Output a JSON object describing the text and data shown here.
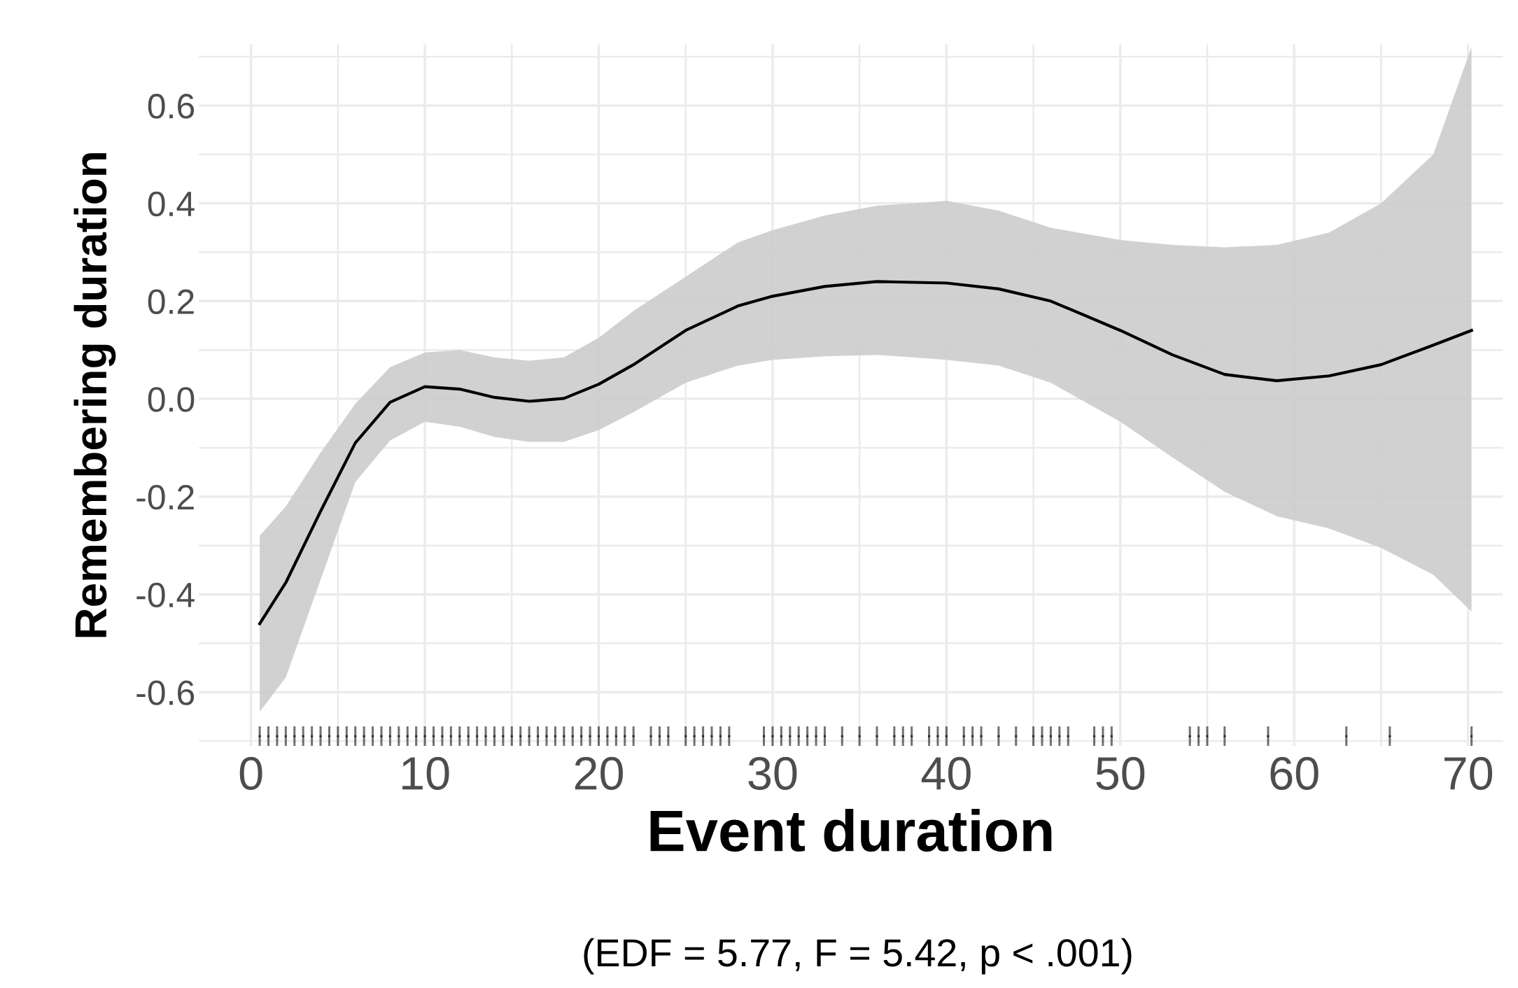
{
  "chart_data": {
    "type": "line",
    "xlabel": "Event duration",
    "ylabel": "Remembering duration",
    "annotations": [
      "(EDF = 5.77, F = 5.42, p < .001)"
    ],
    "xlim": [
      -3,
      72
    ],
    "ylim": [
      -0.71,
      0.725
    ],
    "xticks": [
      0,
      10,
      20,
      30,
      40,
      50,
      60,
      70
    ],
    "yticks": [
      {
        "value": -0.6,
        "label": "-0.6"
      },
      {
        "value": -0.4,
        "label": "-0.4"
      },
      {
        "value": -0.2,
        "label": "-0.2"
      },
      {
        "value": 0,
        "label": "0.0"
      },
      {
        "value": 0.2,
        "label": "0.2"
      },
      {
        "value": 0.4,
        "label": "0.4"
      },
      {
        "value": 0.6,
        "label": "0.6"
      }
    ],
    "grid": true,
    "legend": false,
    "series": [
      {
        "color": "#000000",
        "x": [
          0.5,
          2,
          4,
          6,
          8,
          10,
          12,
          14,
          16,
          18,
          20,
          22,
          25,
          28,
          30,
          33,
          36,
          40,
          43,
          46,
          50,
          53,
          56,
          59,
          62,
          65,
          68,
          70.2
        ],
        "values": [
          -0.46,
          -0.376,
          -0.23,
          -0.09,
          -0.007,
          0.025,
          0.02,
          0.003,
          -0.005,
          0.001,
          0.03,
          0.07,
          0.14,
          0.19,
          0.21,
          0.23,
          0.24,
          0.237,
          0.225,
          0.2,
          0.14,
          0.09,
          0.05,
          0.037,
          0.047,
          0.07,
          0.11,
          0.14
        ],
        "lower": [
          -0.64,
          -0.57,
          -0.37,
          -0.17,
          -0.085,
          -0.047,
          -0.057,
          -0.078,
          -0.088,
          -0.088,
          -0.064,
          -0.027,
          0.033,
          0.068,
          0.08,
          0.087,
          0.09,
          0.08,
          0.068,
          0.033,
          -0.047,
          -0.12,
          -0.19,
          -0.24,
          -0.265,
          -0.305,
          -0.36,
          -0.435
        ],
        "upper": [
          -0.28,
          -0.22,
          -0.11,
          -0.01,
          0.065,
          0.095,
          0.1,
          0.085,
          0.078,
          0.085,
          0.125,
          0.18,
          0.25,
          0.32,
          0.345,
          0.375,
          0.395,
          0.405,
          0.385,
          0.35,
          0.325,
          0.315,
          0.31,
          0.315,
          0.34,
          0.4,
          0.5,
          0.72
        ]
      },
      {
        "type": "scatter",
        "color": "#000000",
        "marker": "circle",
        "errors": [
          0.02,
          0.02,
          0.02,
          0.02,
          0.02,
          0.02,
          0.02,
          0.02,
          0.02,
          0.02,
          0.02,
          0.02,
          0.02,
          0.02,
          0.02,
          0.02,
          0.02,
          0.02,
          0.02,
          0.02,
          0.02,
          0.02,
          0.02,
          0.02,
          0.02,
          0.02,
          0.02,
          0.02,
          0.02,
          0.02,
          0.02,
          0.02,
          0.02,
          0.02,
          0.02,
          0.02,
          0.02,
          0.02,
          0.02,
          0.02,
          0.02,
          0.02,
          0.02,
          0.02,
          0.02,
          0.02,
          0.02,
          0.02,
          0.02,
          0.02,
          0.02,
          0.02,
          0.02,
          0.02,
          0.02,
          0.02,
          0.02,
          0.02,
          0.02,
          0.02,
          0.02,
          0.02,
          0.02,
          0.02,
          0.02,
          0.02,
          0.02,
          0.02,
          0.02,
          0.02,
          0.02,
          0.02,
          0.02,
          0.02,
          0.02,
          0.02,
          0.02,
          0.02,
          0.02,
          0.02,
          0.02,
          0.02,
          0.02,
          0.02,
          0.02,
          0.02,
          0.02,
          0.02,
          0.02,
          0.02,
          0.02
        ],
        "x": [
          0.5,
          1,
          1.5,
          2,
          2.5,
          3,
          3.5,
          4,
          4.5,
          5,
          5.5,
          6,
          6.5,
          7,
          7.5,
          8,
          8.5,
          9,
          9.5,
          10,
          10.5,
          11,
          11.5,
          12,
          12.5,
          13,
          13.5,
          14,
          14.5,
          15,
          15.5,
          16,
          16.5,
          17,
          17.5,
          18,
          18.5,
          19,
          19.5,
          20,
          20.5,
          21,
          21.5,
          22,
          23,
          23.5,
          24,
          25,
          25.5,
          26,
          26.5,
          27,
          27.5,
          29.5,
          30,
          30.5,
          31,
          31.5,
          32,
          32.5,
          33,
          34,
          35,
          36,
          37,
          37.5,
          38,
          39,
          39.5,
          40,
          41,
          41.5,
          42,
          43,
          44,
          45,
          45.5,
          46,
          46.5,
          47,
          48.5,
          49,
          49.5,
          54,
          54.5,
          55,
          56,
          58.5,
          63,
          65.5,
          70.2
        ],
        "values": [
          -0.69,
          -0.69,
          -0.69,
          -0.69,
          -0.69,
          -0.69,
          -0.69,
          -0.69,
          -0.69,
          -0.69,
          -0.69,
          -0.69,
          -0.69,
          -0.69,
          -0.69,
          -0.69,
          -0.69,
          -0.69,
          -0.69,
          -0.69,
          -0.69,
          -0.69,
          -0.69,
          -0.69,
          -0.69,
          -0.69,
          -0.69,
          -0.69,
          -0.69,
          -0.69,
          -0.69,
          -0.69,
          -0.69,
          -0.69,
          -0.69,
          -0.69,
          -0.69,
          -0.69,
          -0.69,
          -0.69,
          -0.69,
          -0.69,
          -0.69,
          -0.69,
          -0.69,
          -0.69,
          -0.69,
          -0.69,
          -0.69,
          -0.69,
          -0.69,
          -0.69,
          -0.69,
          -0.69,
          -0.69,
          -0.69,
          -0.69,
          -0.69,
          -0.69,
          -0.69,
          -0.69,
          -0.69,
          -0.69,
          -0.69,
          -0.69,
          -0.69,
          -0.69,
          -0.69,
          -0.69,
          -0.69,
          -0.69,
          -0.69,
          -0.69,
          -0.69,
          -0.69,
          -0.69,
          -0.69,
          -0.69,
          -0.69,
          -0.69,
          -0.69,
          -0.69,
          -0.69,
          -0.69,
          -0.69,
          -0.69,
          -0.69,
          -0.69,
          -0.69,
          -0.69,
          -0.69
        ]
      }
    ]
  }
}
